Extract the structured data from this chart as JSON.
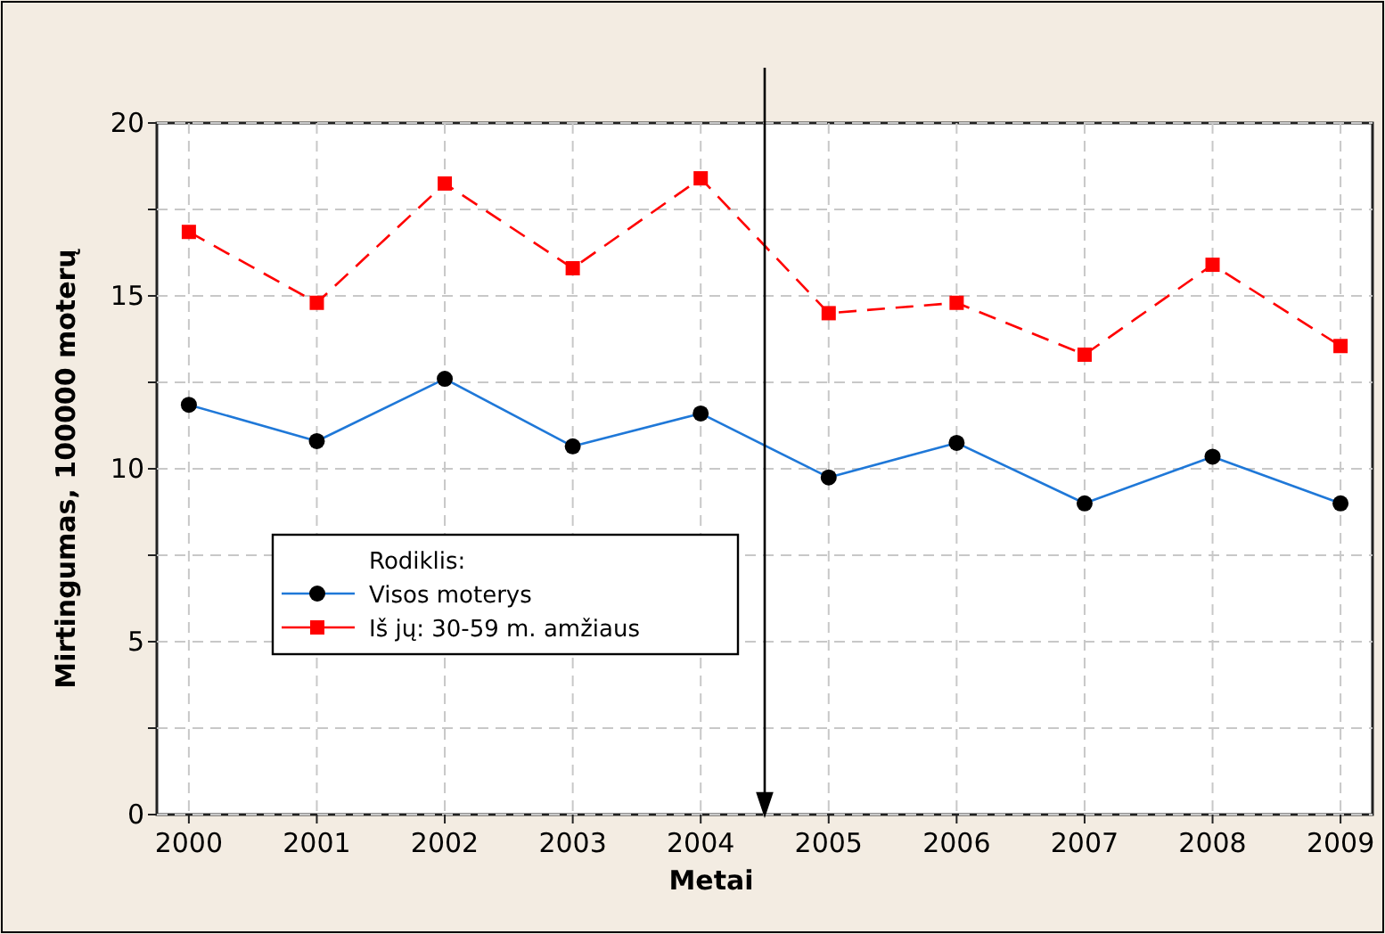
{
  "chart_data": {
    "type": "line",
    "xlabel": "Metai",
    "ylabel": "Mirtingumas, 100000 moterų",
    "legend_title": "Rodiklis:",
    "x": [
      2000,
      2001,
      2002,
      2003,
      2004,
      2005,
      2006,
      2007,
      2008,
      2009
    ],
    "xlim": [
      1999.75,
      2009.25
    ],
    "xticks": [
      2000,
      2001,
      2002,
      2003,
      2004,
      2005,
      2006,
      2007,
      2008,
      2009
    ],
    "ylim": [
      0,
      20
    ],
    "yticks": [
      0,
      {
        "value": 2.5,
        "label": null
      },
      5,
      {
        "value": 7.5,
        "label": null
      },
      10,
      {
        "value": 12.5,
        "label": null
      },
      15,
      {
        "value": 17.5,
        "label": null
      },
      20
    ],
    "grid": true,
    "legend": "left",
    "series": [
      {
        "name": "Visos moterys",
        "color": "#1f78d8",
        "marker": "circle",
        "line_style": "solid",
        "values": [
          11.85,
          10.8,
          12.6,
          10.65,
          11.6,
          9.75,
          10.75,
          9.0,
          10.35,
          9.0
        ]
      },
      {
        "name": "Iš jų: 30-59 m. amžiaus",
        "color": "#ff0000",
        "marker": "square",
        "line_style": "dashed",
        "values": [
          16.85,
          14.8,
          18.25,
          15.8,
          18.4,
          14.5,
          14.8,
          13.3,
          15.9,
          13.55
        ]
      }
    ],
    "ref_lines": [
      {
        "axis": "x",
        "value": 2004.5,
        "color": "#000000",
        "line_style": "solid"
      }
    ]
  }
}
